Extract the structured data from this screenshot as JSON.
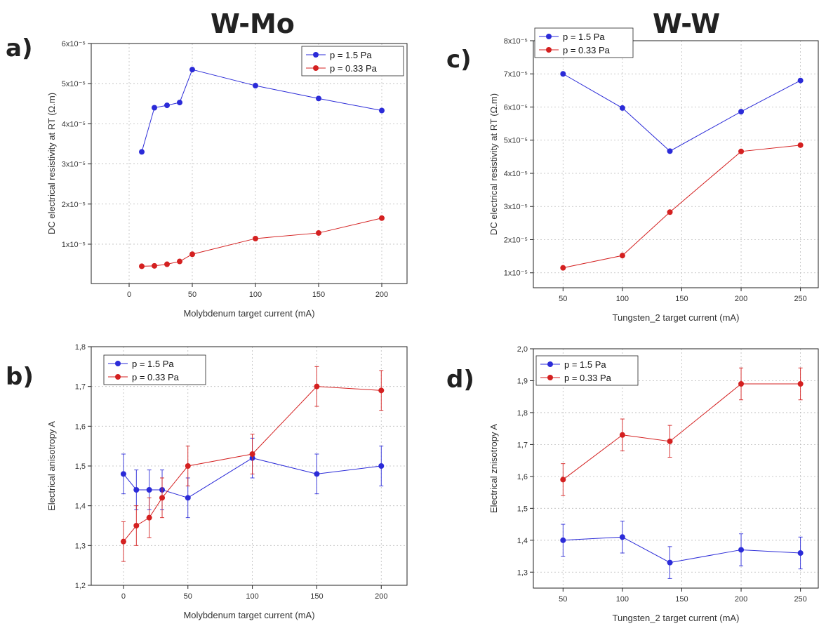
{
  "titles": {
    "left": "W-Mo",
    "right": "W-W"
  },
  "chart_data": [
    {
      "id": "a",
      "panel_label": "a)",
      "type": "line",
      "xlabel": "Molybdenum target current (mA)",
      "ylabel": "DC electrical resistivity at RT (Ω.m)",
      "xlim": [
        -30,
        220
      ],
      "ylim": [
        2e-07,
        6e-05
      ],
      "xticks": [
        0,
        50,
        100,
        150,
        200
      ],
      "xtick_labels": [
        "0",
        "50",
        "100",
        "150",
        "200"
      ],
      "yticks": [
        1e-05,
        2e-05,
        3e-05,
        4e-05,
        5e-05,
        6e-05
      ],
      "ytick_labels": [
        "1x10⁻⁵",
        "2x10⁻⁵",
        "3x10⁻⁵",
        "4x10⁻⁵",
        "5x10⁻⁵",
        "6x10⁻⁵"
      ],
      "legend_position": "top-right",
      "grid": true,
      "series": [
        {
          "name": "p = 1.5 Pa",
          "color": "#2b2bd8",
          "x": [
            10,
            20,
            30,
            40,
            50,
            100,
            150,
            200
          ],
          "y": [
            3.3e-05,
            4.4e-05,
            4.46e-05,
            4.53e-05,
            5.35e-05,
            4.95e-05,
            4.63e-05,
            4.33e-05
          ]
        },
        {
          "name": "p = 0.33 Pa",
          "color": "#d42020",
          "x": [
            10,
            20,
            30,
            40,
            50,
            100,
            150,
            200
          ],
          "y": [
            4.5e-06,
            4.6e-06,
            5e-06,
            5.7e-06,
            7.5e-06,
            1.14e-05,
            1.28e-05,
            1.65e-05
          ]
        }
      ]
    },
    {
      "id": "b",
      "panel_label": "b)",
      "type": "line",
      "xlabel": "Molybdenum target current (mA)",
      "ylabel": "Electrical anisotropy A",
      "xlim": [
        -25,
        220
      ],
      "ylim": [
        1.2,
        1.8
      ],
      "xticks": [
        0,
        50,
        100,
        150,
        200
      ],
      "xtick_labels": [
        "0",
        "50",
        "100",
        "150",
        "200"
      ],
      "yticks": [
        1.2,
        1.3,
        1.4,
        1.5,
        1.6,
        1.7,
        1.8
      ],
      "ytick_labels": [
        "1,2",
        "1,3",
        "1,4",
        "1,5",
        "1,6",
        "1,7",
        "1,8"
      ],
      "legend_position": "top-left",
      "grid": true,
      "series": [
        {
          "name": "p = 1.5 Pa",
          "color": "#2b2bd8",
          "x": [
            0,
            10,
            20,
            30,
            50,
            100,
            150,
            200
          ],
          "y": [
            1.48,
            1.44,
            1.44,
            1.44,
            1.42,
            1.52,
            1.48,
            1.5
          ],
          "err": [
            0.05,
            0.05,
            0.05,
            0.05,
            0.05,
            0.05,
            0.05,
            0.05
          ]
        },
        {
          "name": "p = 0.33 Pa",
          "color": "#d42020",
          "x": [
            0,
            10,
            20,
            30,
            50,
            100,
            150,
            200
          ],
          "y": [
            1.31,
            1.35,
            1.37,
            1.42,
            1.5,
            1.53,
            1.7,
            1.69
          ],
          "err": [
            0.05,
            0.05,
            0.05,
            0.05,
            0.05,
            0.05,
            0.05,
            0.05
          ]
        }
      ]
    },
    {
      "id": "c",
      "panel_label": "c)",
      "type": "line",
      "xlabel": "Tungsten_2 target current (mA)",
      "ylabel": "DC electrical resistivity at RT (Ω.m)",
      "xlim": [
        25,
        265
      ],
      "ylim": [
        5.5e-06,
        8e-05
      ],
      "xticks": [
        50,
        100,
        150,
        200,
        250
      ],
      "xtick_labels": [
        "50",
        "100",
        "150",
        "200",
        "250"
      ],
      "yticks": [
        1e-05,
        2e-05,
        3e-05,
        4e-05,
        5e-05,
        6e-05,
        7e-05,
        8e-05
      ],
      "ytick_labels": [
        "1x10⁻⁵",
        "2x10⁻⁵",
        "3x10⁻⁵",
        "4x10⁻⁵",
        "5x10⁻⁵",
        "6x10⁻⁵",
        "7x10⁻⁵",
        "8x10⁻⁵"
      ],
      "legend_position": "top-left",
      "grid": true,
      "series": [
        {
          "name": "p = 1.5 Pa",
          "color": "#2b2bd8",
          "x": [
            50,
            100,
            140,
            200,
            250
          ],
          "y": [
            7e-05,
            5.97e-05,
            4.67e-05,
            5.86e-05,
            6.8e-05
          ]
        },
        {
          "name": "p = 0.33 Pa",
          "color": "#d42020",
          "x": [
            50,
            100,
            140,
            200,
            250
          ],
          "y": [
            1.15e-05,
            1.52e-05,
            2.83e-05,
            4.66e-05,
            4.85e-05
          ]
        }
      ]
    },
    {
      "id": "d",
      "panel_label": "d)",
      "type": "line",
      "xlabel": "Tungsten_2 target current (mA)",
      "ylabel": "Electrical znisotropy A",
      "xlim": [
        25,
        265
      ],
      "ylim": [
        1.25,
        2.0
      ],
      "xticks": [
        50,
        100,
        150,
        200,
        250
      ],
      "xtick_labels": [
        "50",
        "100",
        "150",
        "200",
        "250"
      ],
      "yticks": [
        1.3,
        1.4,
        1.5,
        1.6,
        1.7,
        1.8,
        1.9,
        2.0
      ],
      "ytick_labels": [
        "1,3",
        "1,4",
        "1,5",
        "1,6",
        "1,7",
        "1,8",
        "1,9",
        "2,0"
      ],
      "legend_position": "top-left",
      "grid": true,
      "series": [
        {
          "name": "p = 1.5 Pa",
          "color": "#2b2bd8",
          "x": [
            50,
            100,
            140,
            200,
            250
          ],
          "y": [
            1.4,
            1.41,
            1.33,
            1.37,
            1.36
          ],
          "err": [
            0.05,
            0.05,
            0.05,
            0.05,
            0.05
          ]
        },
        {
          "name": "p = 0.33 Pa",
          "color": "#d42020",
          "x": [
            50,
            100,
            140,
            200,
            250
          ],
          "y": [
            1.59,
            1.73,
            1.71,
            1.89,
            1.89
          ],
          "err": [
            0.05,
            0.05,
            0.05,
            0.05,
            0.05
          ]
        }
      ]
    }
  ]
}
